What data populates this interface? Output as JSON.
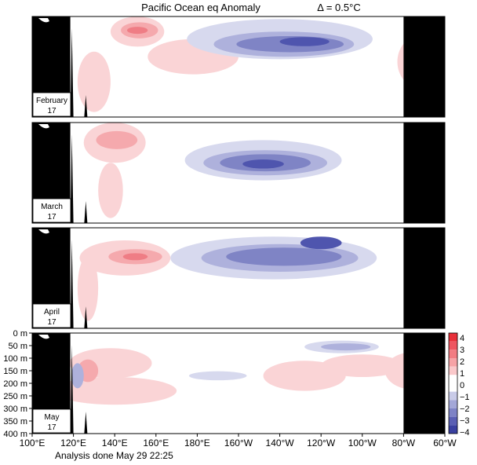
{
  "chart_data": {
    "type": "heatmap",
    "title": "Pacific Ocean eq Anomaly",
    "contour_interval": "Δ = 0.5°C",
    "x_ticks": [
      "100°E",
      "120°E",
      "140°E",
      "160°E",
      "180°E",
      "160°W",
      "140°W",
      "120°W",
      "100°W",
      "80°W",
      "60°W"
    ],
    "x_tick_lon": [
      100,
      120,
      140,
      160,
      180,
      200,
      220,
      240,
      260,
      280,
      300
    ],
    "xlim": [
      100,
      300
    ],
    "y_ticks": [
      "0 m",
      "50 m",
      "100 m",
      "150 m",
      "200 m",
      "250 m",
      "300 m",
      "350 m",
      "400 m"
    ],
    "y_tick_depth": [
      0,
      50,
      100,
      150,
      200,
      250,
      300,
      350,
      400
    ],
    "ylim": [
      0,
      400
    ],
    "colorbar": {
      "labels": [
        "4",
        "3",
        "2",
        "1",
        "0",
        "−1",
        "−2",
        "−3",
        "−4"
      ],
      "colors": [
        "#e8303a",
        "#ee5560",
        "#f27c82",
        "#f6a3a6",
        "#fac8ca",
        "#ffffff",
        "#ffffff",
        "#c9cbe8",
        "#a3a7d8",
        "#7e83c6",
        "#5a5fb4",
        "#3a40a0"
      ]
    },
    "colors": {
      "pos1": "#fad4d6",
      "pos2": "#f5a9ad",
      "pos3": "#ef7d85",
      "neg1": "#d7d9ee",
      "neg2": "#aeb1dc",
      "neg3": "#7f84c5",
      "neg4": "#4f55ae",
      "land": "#000000"
    },
    "panels": [
      {
        "month": "February",
        "year": "17",
        "anomalies": [
          {
            "lon": 151,
            "depth": 60,
            "rx": 13,
            "ry": 60,
            "level": "pos1"
          },
          {
            "lon": 152,
            "depth": 55,
            "rx": 9,
            "ry": 32,
            "level": "pos2"
          },
          {
            "lon": 151,
            "depth": 55,
            "rx": 5,
            "ry": 14,
            "level": "pos3"
          },
          {
            "lon": 178,
            "depth": 160,
            "rx": 22,
            "ry": 70,
            "level": "pos1"
          },
          {
            "lon": 130,
            "depth": 260,
            "rx": 8,
            "ry": 120,
            "level": "pos1"
          },
          {
            "lon": 287,
            "depth": 180,
            "rx": 10,
            "ry": 100,
            "level": "pos1"
          },
          {
            "lon": 220,
            "depth": 90,
            "rx": 45,
            "ry": 80,
            "level": "neg1"
          },
          {
            "lon": 222,
            "depth": 110,
            "rx": 34,
            "ry": 50,
            "level": "neg2"
          },
          {
            "lon": 225,
            "depth": 110,
            "rx": 26,
            "ry": 32,
            "level": "neg3"
          },
          {
            "lon": 232,
            "depth": 100,
            "rx": 12,
            "ry": 18,
            "level": "neg4"
          }
        ]
      },
      {
        "month": "March",
        "year": "17",
        "anomalies": [
          {
            "lon": 140,
            "depth": 80,
            "rx": 15,
            "ry": 80,
            "level": "pos1"
          },
          {
            "lon": 141,
            "depth": 70,
            "rx": 10,
            "ry": 36,
            "level": "pos2"
          },
          {
            "lon": 138,
            "depth": 270,
            "rx": 6,
            "ry": 110,
            "level": "pos1"
          },
          {
            "lon": 290,
            "depth": 220,
            "rx": 10,
            "ry": 130,
            "level": "pos1"
          },
          {
            "lon": 212,
            "depth": 150,
            "rx": 38,
            "ry": 80,
            "level": "neg1"
          },
          {
            "lon": 213,
            "depth": 160,
            "rx": 30,
            "ry": 50,
            "level": "neg2"
          },
          {
            "lon": 213,
            "depth": 160,
            "rx": 22,
            "ry": 34,
            "level": "neg3"
          },
          {
            "lon": 212,
            "depth": 165,
            "rx": 10,
            "ry": 18,
            "level": "neg4"
          }
        ]
      },
      {
        "month": "April",
        "year": "17",
        "anomalies": [
          {
            "lon": 145,
            "depth": 120,
            "rx": 22,
            "ry": 70,
            "level": "pos1"
          },
          {
            "lon": 150,
            "depth": 115,
            "rx": 13,
            "ry": 30,
            "level": "pos2"
          },
          {
            "lon": 150,
            "depth": 115,
            "rx": 6,
            "ry": 14,
            "level": "pos3"
          },
          {
            "lon": 127,
            "depth": 240,
            "rx": 5,
            "ry": 130,
            "level": "pos1"
          },
          {
            "lon": 217,
            "depth": 120,
            "rx": 50,
            "ry": 85,
            "level": "neg1"
          },
          {
            "lon": 220,
            "depth": 120,
            "rx": 38,
            "ry": 55,
            "level": "neg2"
          },
          {
            "lon": 222,
            "depth": 115,
            "rx": 28,
            "ry": 36,
            "level": "neg3"
          },
          {
            "lon": 240,
            "depth": 60,
            "rx": 10,
            "ry": 25,
            "level": "neg4"
          }
        ]
      },
      {
        "month": "May",
        "year": "17",
        "anomalies": [
          {
            "lon": 138,
            "depth": 120,
            "rx": 20,
            "ry": 60,
            "level": "pos1"
          },
          {
            "lon": 127,
            "depth": 150,
            "rx": 5,
            "ry": 45,
            "level": "pos2"
          },
          {
            "lon": 140,
            "depth": 230,
            "rx": 30,
            "ry": 55,
            "level": "pos1"
          },
          {
            "lon": 232,
            "depth": 170,
            "rx": 20,
            "ry": 60,
            "level": "pos1"
          },
          {
            "lon": 260,
            "depth": 130,
            "rx": 20,
            "ry": 45,
            "level": "pos1"
          },
          {
            "lon": 285,
            "depth": 150,
            "rx": 14,
            "ry": 75,
            "level": "pos1"
          },
          {
            "lon": 250,
            "depth": 55,
            "rx": 18,
            "ry": 25,
            "level": "neg1"
          },
          {
            "lon": 252,
            "depth": 55,
            "rx": 12,
            "ry": 14,
            "level": "neg2"
          },
          {
            "lon": 296,
            "depth": 50,
            "rx": 3,
            "ry": 12,
            "level": "neg2"
          },
          {
            "lon": 122,
            "depth": 170,
            "rx": 3,
            "ry": 50,
            "level": "neg2"
          },
          {
            "lon": 190,
            "depth": 170,
            "rx": 14,
            "ry": 18,
            "level": "neg1"
          }
        ]
      }
    ],
    "footer": "Analysis done May 29 22:25"
  }
}
